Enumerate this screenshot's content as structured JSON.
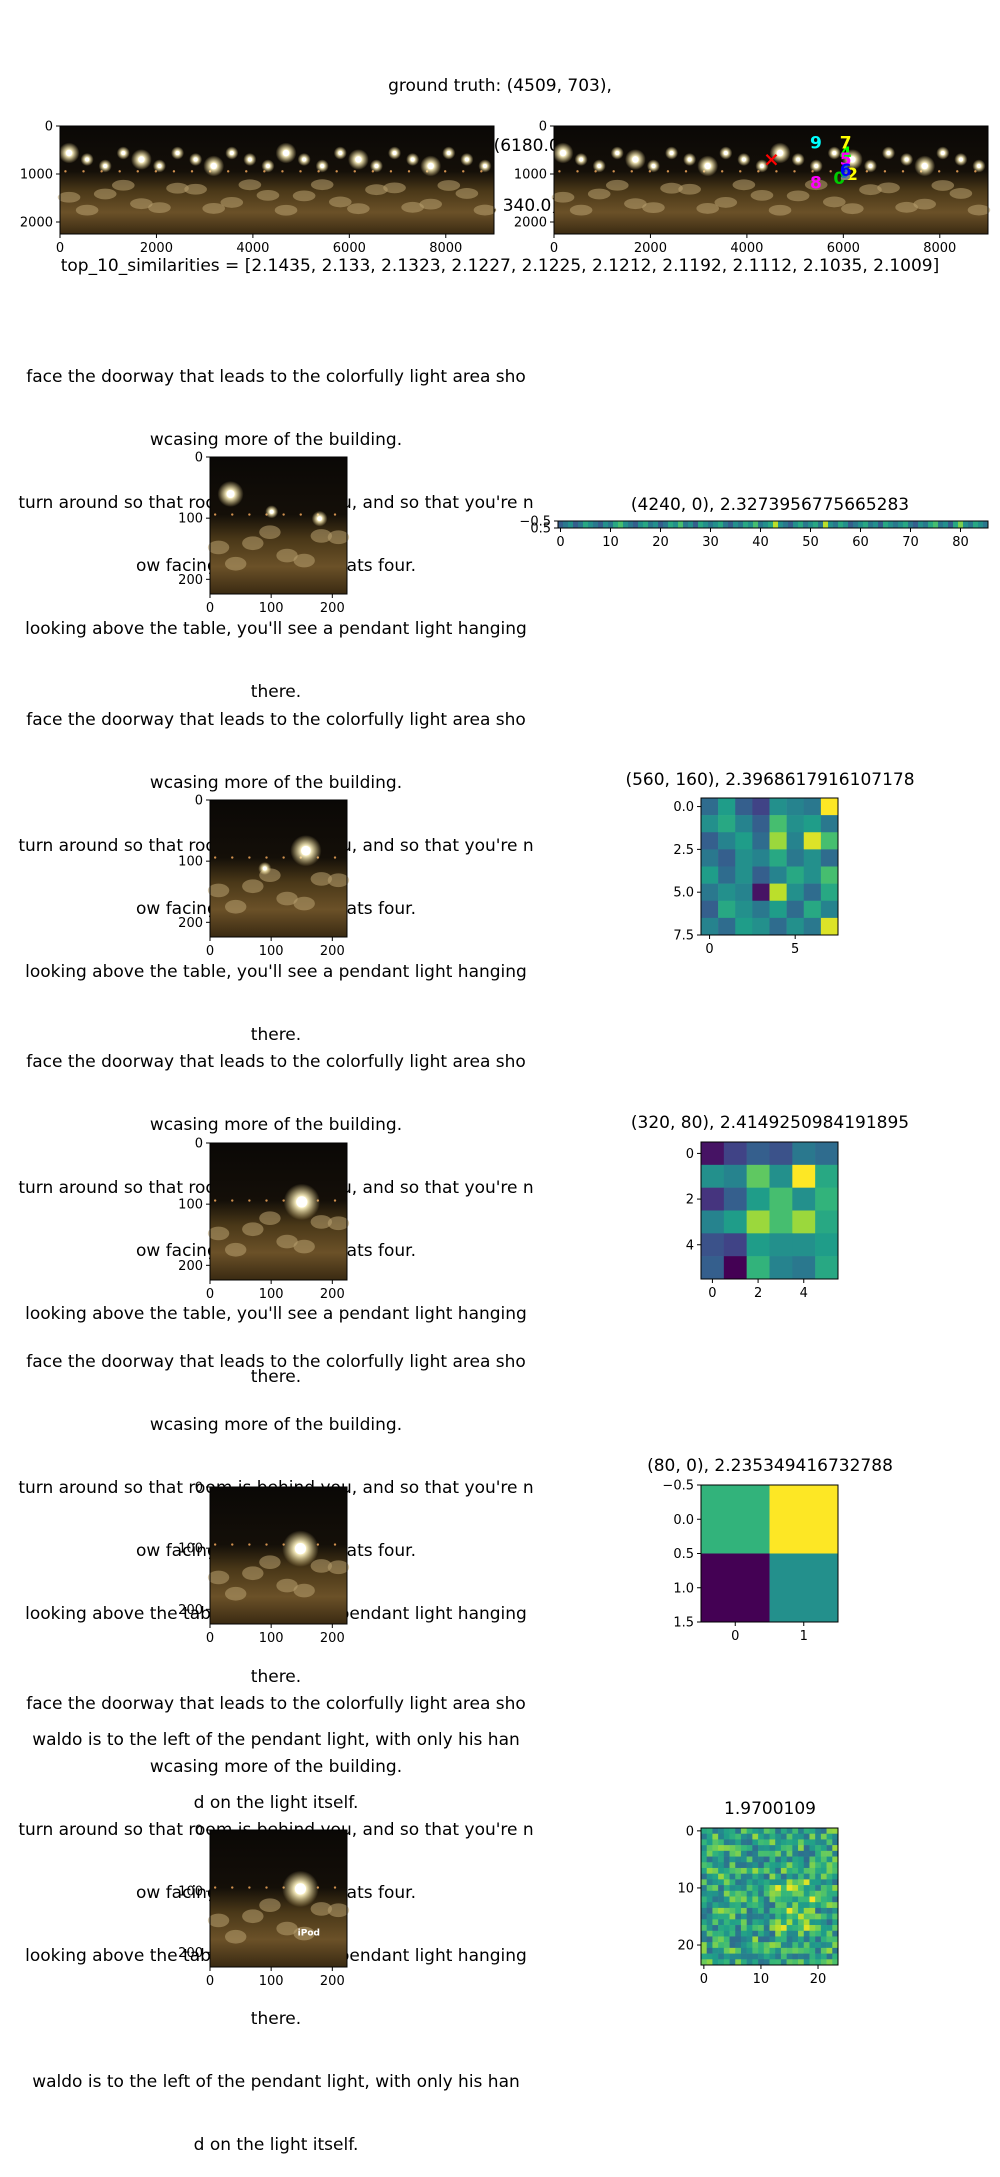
{
  "figure": {
    "supertitle_lines": [
      "ground truth: (4509, 703),",
      "top_10_pred = [(5916.0, 1088.0), (6048.0, 956.0), (6180.0, 1000.0), (6048.0, 1000.0), (6048.0, 560.0)]",
      "[(6048.0, 692.0), (6048.0, 912.0), (6048.0, 340.0), (5432.0, 1176.0), (5432.0, 340.0)],",
      "top_10_similarities = [2.1435, 2.133, 2.1323, 2.1227, 2.1225, 2.1212, 2.1192, 2.1112, 2.1035, 2.1009]"
    ],
    "colors": {
      "prediction_markers": [
        "#00cc00",
        "#1f77b4",
        "#ffff00",
        "#7f7f7f",
        "#00ff00",
        "#ff00ff",
        "#0000ff",
        "#ffff00",
        "#ff00ff",
        "#00ffff"
      ],
      "ground_truth_marker": "#ff0000"
    }
  },
  "rows": [
    {
      "instruction_lines": [
        "face the doorway that leads to the colorfully light area sho",
        "wcasing more of the building.",
        "turn around so that room is behind you, and so that you're n",
        "ow facing a table that seats four.",
        "looking above the table, you'll see a pendant light hanging",
        "there."
      ],
      "panel_title": "(4240, 0), 2.3273956775665283"
    },
    {
      "instruction_lines": [
        "face the doorway that leads to the colorfully light area sho",
        "wcasing more of the building.",
        "turn around so that room is behind you, and so that you're n",
        "ow facing a table that seats four.",
        "looking above the table, you'll see a pendant light hanging",
        "there."
      ],
      "panel_title": "(560, 160), 2.3968617916107178"
    },
    {
      "instruction_lines": [
        "face the doorway that leads to the colorfully light area sho",
        "wcasing more of the building.",
        "turn around so that room is behind you, and so that you're n",
        "ow facing a table that seats four.",
        "looking above the table, you'll see a pendant light hanging",
        "there."
      ],
      "panel_title": "(320, 80), 2.4149250984191895"
    },
    {
      "instruction_lines": [
        "face the doorway that leads to the colorfully light area sho",
        "wcasing more of the building.",
        "turn around so that room is behind you, and so that you're n",
        "ow facing a table that seats four.",
        "looking above the table, you'll see a pendant light hanging",
        "there.",
        "waldo is to the left of the pendant light, with only his han",
        "d on the light itself."
      ],
      "panel_title": "(80, 0), 2.235349416732788"
    },
    {
      "instruction_lines": [
        "face the doorway that leads to the colorfully light area sho",
        "wcasing more of the building.",
        "turn around so that room is behind you, and so that you're n",
        "ow facing a table that seats four.",
        "looking above the table, you'll see a pendant light hanging",
        "there.",
        "waldo is to the left of the pendant light, with only his han",
        "d on the light itself."
      ],
      "panel_title": "1.9700109",
      "image_overlay_text": "iPod"
    }
  ],
  "chart_data": [
    {
      "type": "image",
      "panel": "panorama",
      "xlim": [
        0,
        9000
      ],
      "ylim": [
        2250,
        0
      ],
      "xticks": [
        "0",
        "2000",
        "4000",
        "6000",
        "8000"
      ],
      "yticks": [
        "0",
        "1000",
        "2000"
      ]
    },
    {
      "type": "scatter",
      "panel": "panorama-with-predictions",
      "xlim": [
        0,
        9000
      ],
      "ylim": [
        2250,
        0
      ],
      "xticks": [
        "0",
        "2000",
        "4000",
        "6000",
        "8000"
      ],
      "yticks": [
        "0",
        "1000",
        "2000"
      ],
      "ground_truth": {
        "x": 4509,
        "y": 703,
        "marker": "x"
      },
      "points": [
        {
          "label": "0",
          "x": 5916,
          "y": 1088
        },
        {
          "label": "1",
          "x": 6048,
          "y": 956
        },
        {
          "label": "2",
          "x": 6180,
          "y": 1000
        },
        {
          "label": "3",
          "x": 6048,
          "y": 1000
        },
        {
          "label": "4",
          "x": 6048,
          "y": 560
        },
        {
          "label": "5",
          "x": 6048,
          "y": 692
        },
        {
          "label": "6",
          "x": 6048,
          "y": 912
        },
        {
          "label": "7",
          "x": 6048,
          "y": 340
        },
        {
          "label": "8",
          "x": 5432,
          "y": 1176
        },
        {
          "label": "9",
          "x": 5432,
          "y": 340
        }
      ]
    },
    {
      "type": "image",
      "panel": "view-1",
      "xticks": [
        "0",
        "100",
        "200"
      ],
      "yticks": [
        "0",
        "100",
        "200"
      ]
    },
    {
      "type": "heatmap",
      "panel": "strip",
      "cols": 86,
      "rows": 1,
      "xticks": [
        "0",
        "10",
        "20",
        "30",
        "40",
        "50",
        "60",
        "70",
        "80"
      ],
      "yticks": [
        "−0.5",
        "0.5"
      ],
      "values": [
        [
          0.3,
          0.4,
          0.5,
          0.3,
          0.4,
          0.6,
          0.5,
          0.4,
          0.3,
          0.5,
          0.4,
          0.6,
          0.7,
          0.5,
          0.4,
          0.3,
          0.5,
          0.6,
          0.4,
          0.5,
          0.3,
          0.4,
          0.6,
          0.5,
          0.7,
          0.4,
          0.5,
          0.3,
          0.6,
          0.5,
          0.4,
          0.5,
          0.6,
          0.4,
          0.3,
          0.5,
          0.4,
          0.6,
          0.5,
          0.7,
          0.4,
          0.5,
          0.6,
          0.9,
          0.5,
          0.4,
          0.3,
          0.5,
          0.6,
          0.4,
          0.5,
          0.6,
          0.4,
          0.9,
          0.5,
          0.4,
          0.6,
          0.5,
          0.3,
          0.4,
          0.5,
          0.6,
          0.4,
          0.5,
          0.3,
          0.6,
          0.5,
          0.4,
          0.5,
          0.6,
          0.4,
          0.3,
          0.5,
          0.4,
          0.6,
          0.7,
          0.4,
          0.5,
          0.3,
          0.6,
          0.8,
          0.5,
          0.4,
          0.6,
          0.5,
          0.4
        ]
      ]
    },
    {
      "type": "image",
      "panel": "view-2",
      "xticks": [
        "0",
        "100",
        "200"
      ],
      "yticks": [
        "0",
        "100",
        "200"
      ]
    },
    {
      "type": "heatmap",
      "panel": "grid-8",
      "cols": 8,
      "rows": 8,
      "xticks": [
        "0",
        "5"
      ],
      "yticks": [
        "0.0",
        "2.5",
        "5.0",
        "7.5"
      ],
      "values": [
        [
          0.35,
          0.55,
          0.3,
          0.2,
          0.5,
          0.45,
          0.4,
          1.0
        ],
        [
          0.5,
          0.6,
          0.45,
          0.3,
          0.7,
          0.5,
          0.55,
          0.4
        ],
        [
          0.3,
          0.45,
          0.55,
          0.35,
          0.85,
          0.45,
          0.95,
          0.7
        ],
        [
          0.4,
          0.3,
          0.5,
          0.45,
          0.6,
          0.4,
          0.5,
          0.35
        ],
        [
          0.55,
          0.35,
          0.5,
          0.3,
          0.45,
          0.6,
          0.5,
          0.7
        ],
        [
          0.4,
          0.5,
          0.45,
          0.05,
          0.9,
          0.5,
          0.35,
          0.6
        ],
        [
          0.3,
          0.6,
          0.5,
          0.4,
          0.55,
          0.35,
          0.6,
          0.45
        ],
        [
          0.45,
          0.35,
          0.55,
          0.5,
          0.35,
          0.5,
          0.4,
          0.95
        ]
      ]
    },
    {
      "type": "image",
      "panel": "view-3",
      "xticks": [
        "0",
        "100",
        "200"
      ],
      "yticks": [
        "0",
        "100",
        "200"
      ]
    },
    {
      "type": "heatmap",
      "panel": "grid-6",
      "cols": 6,
      "rows": 6,
      "xticks": [
        "0",
        "2",
        "4"
      ],
      "yticks": [
        "0",
        "2",
        "4"
      ],
      "values": [
        [
          0.05,
          0.2,
          0.3,
          0.25,
          0.4,
          0.35
        ],
        [
          0.5,
          0.45,
          0.75,
          0.5,
          1.0,
          0.6
        ],
        [
          0.15,
          0.3,
          0.55,
          0.7,
          0.5,
          0.65
        ],
        [
          0.45,
          0.55,
          0.85,
          0.7,
          0.85,
          0.6
        ],
        [
          0.25,
          0.2,
          0.55,
          0.5,
          0.5,
          0.55
        ],
        [
          0.3,
          0.0,
          0.65,
          0.45,
          0.4,
          0.6
        ]
      ]
    },
    {
      "type": "image",
      "panel": "view-4",
      "xticks": [
        "0",
        "100",
        "200"
      ],
      "yticks": [
        "0",
        "100",
        "200"
      ]
    },
    {
      "type": "heatmap",
      "panel": "grid-2",
      "cols": 2,
      "rows": 2,
      "xticks": [
        "0",
        "1"
      ],
      "yticks": [
        "−0.5",
        "0.0",
        "0.5",
        "1.0",
        "1.5"
      ],
      "values": [
        [
          0.65,
          1.0
        ],
        [
          0.0,
          0.5
        ]
      ]
    },
    {
      "type": "image",
      "panel": "view-5",
      "xticks": [
        "0",
        "100",
        "200"
      ],
      "yticks": [
        "0",
        "100",
        "200"
      ]
    },
    {
      "type": "heatmap",
      "panel": "grid-24",
      "cols": 24,
      "rows": 24,
      "xticks": [
        "0",
        "10",
        "20"
      ],
      "yticks": [
        "0",
        "10",
        "20"
      ],
      "seed": 7
    }
  ]
}
